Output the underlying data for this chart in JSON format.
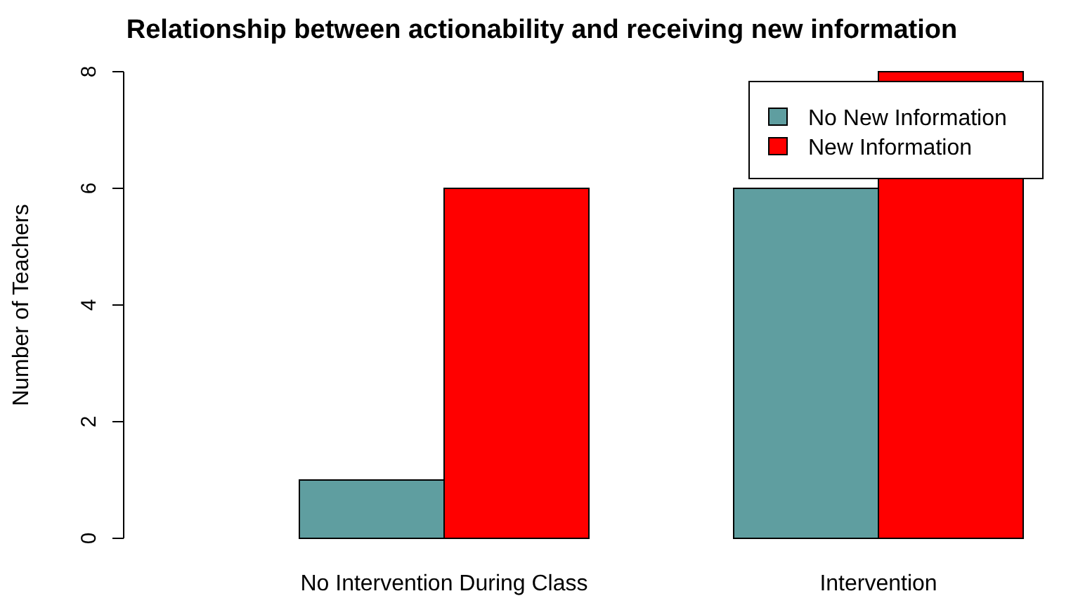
{
  "chart_data": {
    "type": "bar",
    "title": "Relationship between actionability and receiving new information",
    "ylabel": "Number of Teachers",
    "categories": [
      "No Intervention During Class",
      "Intervention"
    ],
    "series": [
      {
        "name": "No New Information",
        "color": "#5f9ea0",
        "values": [
          1,
          6
        ]
      },
      {
        "name": "New Information",
        "color": "#ff0000",
        "values": [
          6,
          8
        ]
      }
    ],
    "ylim": [
      0,
      8
    ],
    "yticks": [
      0,
      2,
      4,
      6,
      8
    ],
    "legend": "top right",
    "grid": false
  }
}
